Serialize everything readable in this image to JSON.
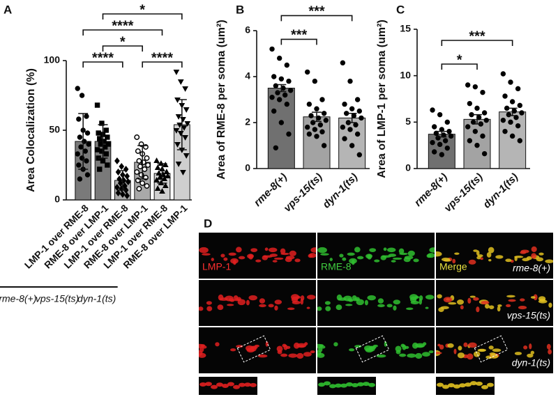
{
  "chart_data": [
    {
      "type": "bar",
      "panel": "A",
      "ylabel": "Area Colocalization (%)",
      "categories": [
        "LMP-1 over RME-8",
        "RME-8 over LMP-1",
        "LMP-1 over RME-8",
        "RME-8 over LMP-1",
        "LMP-1 over RME-8",
        "RME-8 over LMP-1"
      ],
      "values": [
        42,
        42,
        14,
        27,
        19,
        54
      ],
      "errors": [
        20,
        12,
        7,
        12,
        7,
        18
      ],
      "colors": [
        "#7a7a7a",
        "#7a7a7a",
        "#a9a9a9",
        "#a9a9a9",
        "#cfcfcf",
        "#cfcfcf"
      ],
      "markers": [
        "circle",
        "square",
        "diamond",
        "circle-open",
        "triangle-up",
        "triangle-down"
      ],
      "points": [
        [
          80,
          75,
          60,
          58,
          50,
          48,
          45,
          42,
          40,
          38,
          35,
          33,
          30,
          28,
          25,
          22,
          18,
          15
        ],
        [
          68,
          55,
          50,
          48,
          47,
          45,
          44,
          42,
          40,
          40,
          38,
          36,
          35,
          33,
          30,
          28,
          25,
          22
        ],
        [
          28,
          24,
          22,
          20,
          18,
          17,
          15,
          14,
          13,
          12,
          10,
          9,
          8,
          7,
          5,
          4,
          3
        ],
        [
          45,
          40,
          38,
          35,
          33,
          30,
          28,
          27,
          25,
          24,
          22,
          20,
          18,
          16,
          14,
          12,
          10,
          8
        ],
        [
          28,
          26,
          25,
          23,
          22,
          20,
          19,
          18,
          17,
          16,
          15,
          14,
          12,
          10,
          8,
          6
        ],
        [
          92,
          85,
          80,
          72,
          68,
          65,
          60,
          58,
          55,
          54,
          52,
          50,
          48,
          45,
          40,
          36,
          32,
          26,
          20
        ]
      ],
      "ylim": [
        0,
        100
      ],
      "yticks": [
        0,
        50,
        100
      ],
      "groups": [
        {
          "label": "rme-8(+)",
          "from": 0,
          "to": 1
        },
        {
          "label": "vps-15(ts)",
          "from": 2,
          "to": 3
        },
        {
          "label": "dyn-1(ts)",
          "from": 4,
          "to": 5
        }
      ],
      "significance": [
        {
          "from": 0,
          "to": 2,
          "label": "****"
        },
        {
          "from": 3,
          "to": 5,
          "label": "****"
        },
        {
          "from": 1,
          "to": 3,
          "label": "*"
        },
        {
          "from": 0,
          "to": 4,
          "label": "****"
        },
        {
          "from": 1,
          "to": 5,
          "label": "*"
        }
      ]
    },
    {
      "type": "bar",
      "panel": "B",
      "ylabel": "Area of RME-8 per soma (um²)",
      "categories": [
        "rme-8(+)",
        "vps-15(ts)",
        "dyn-1(ts)"
      ],
      "italic_categories": true,
      "values": [
        3.5,
        2.25,
        2.2
      ],
      "errors": [
        0.15,
        0.2,
        0.2
      ],
      "colors": [
        "#707070",
        "#a3a3a3",
        "#b5b5b5"
      ],
      "markers": [
        "circle",
        "circle",
        "circle"
      ],
      "points": [
        [
          5.2,
          4.8,
          4.5,
          4.0,
          3.9,
          3.8,
          3.6,
          3.5,
          3.4,
          3.3,
          3.2,
          3.1,
          3.0,
          2.8,
          2.5,
          2.0,
          1.5,
          0.9
        ],
        [
          4.2,
          3.8,
          3.0,
          2.8,
          2.6,
          2.4,
          2.3,
          2.2,
          2.1,
          2.0,
          1.9,
          1.8,
          1.7,
          1.6,
          1.5,
          1.4,
          1.0
        ],
        [
          4.6,
          3.8,
          3.0,
          2.8,
          2.6,
          2.5,
          2.4,
          2.3,
          2.2,
          2.0,
          1.9,
          1.8,
          1.7,
          1.5,
          1.3,
          1.0,
          0.6
        ]
      ],
      "ylim": [
        0,
        6
      ],
      "yticks": [
        0,
        2,
        4,
        6
      ],
      "significance": [
        {
          "from": 0,
          "to": 1,
          "label": "***"
        },
        {
          "from": 0,
          "to": 2,
          "label": "***"
        }
      ]
    },
    {
      "type": "bar",
      "panel": "C",
      "ylabel": "Area of LMP-1 per soma (um²)",
      "categories": [
        "rme-8(+)",
        "vps-15(ts)",
        "dyn-1(ts)"
      ],
      "italic_categories": true,
      "values": [
        3.7,
        5.3,
        6.1
      ],
      "errors": [
        0.3,
        0.5,
        0.4
      ],
      "colors": [
        "#707070",
        "#a3a3a3",
        "#b5b5b5"
      ],
      "markers": [
        "circle",
        "circle",
        "circle"
      ],
      "points": [
        [
          6.3,
          5.8,
          5.0,
          4.5,
          4.2,
          4.0,
          3.8,
          3.6,
          3.5,
          3.3,
          3.0,
          2.8,
          2.6,
          2.2,
          1.8,
          1.5
        ],
        [
          9.0,
          8.8,
          8.2,
          7.0,
          6.5,
          6.0,
          5.8,
          5.5,
          5.2,
          5.0,
          4.8,
          4.5,
          4.0,
          3.5,
          3.0,
          2.5,
          1.6
        ],
        [
          10.2,
          9.3,
          8.6,
          7.8,
          7.2,
          6.8,
          6.5,
          6.2,
          6.0,
          5.8,
          5.5,
          5.2,
          5.0,
          4.6,
          4.0,
          3.5,
          3.0
        ]
      ],
      "ylim": [
        0,
        15
      ],
      "yticks": [
        0,
        5,
        10,
        15
      ],
      "significance": [
        {
          "from": 0,
          "to": 1,
          "label": "*"
        },
        {
          "from": 0,
          "to": 2,
          "label": "***"
        }
      ]
    }
  ],
  "image_panel": {
    "panel": "D",
    "channels": [
      "LMP-1",
      "RME-8",
      "Merge"
    ],
    "channel_colors": [
      "#ff3030",
      "#40d040",
      "#e8e040"
    ],
    "rows": [
      "rme-8(+)",
      "vps-15(ts)",
      "dyn-1(ts)"
    ]
  }
}
